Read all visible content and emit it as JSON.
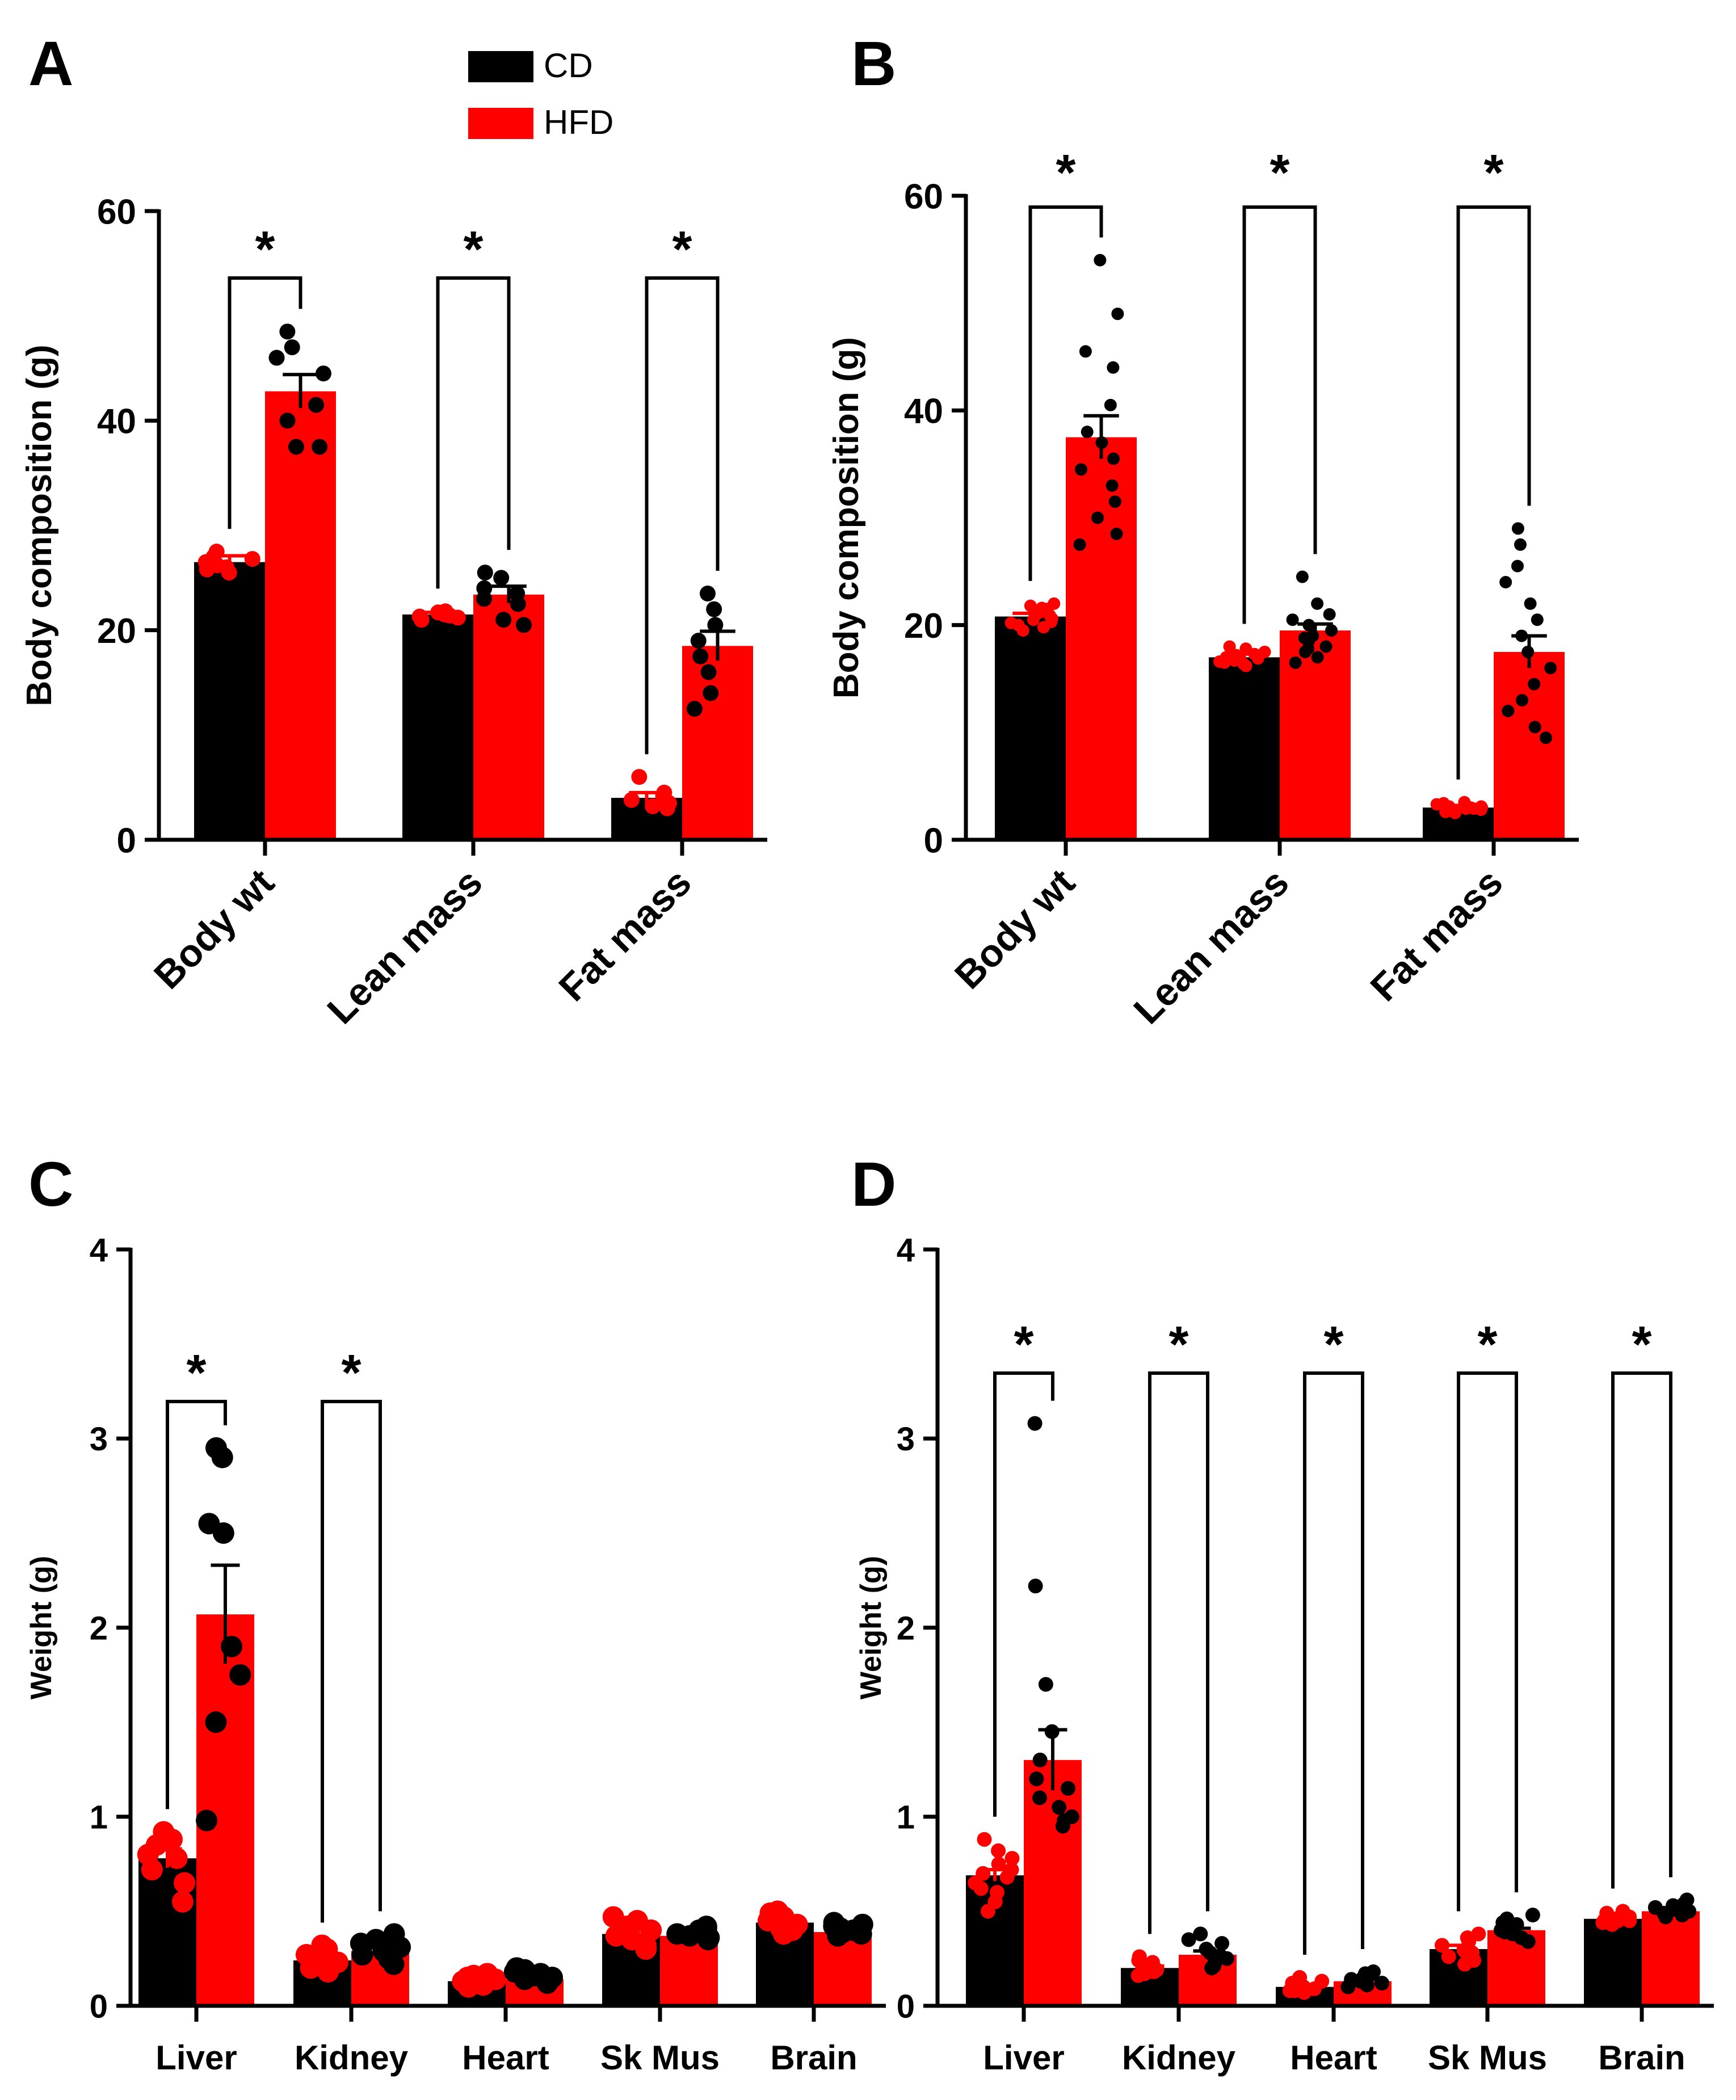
{
  "legend": {
    "position": "top",
    "entries": [
      {
        "label": "CD",
        "color": "#000000"
      },
      {
        "label": "HFD",
        "color": "#ff0000"
      }
    ]
  },
  "colors": {
    "CD": "#000000",
    "HFD": "#ff0000",
    "axis": "#000000"
  },
  "chart_data": [
    {
      "panel": "A",
      "type": "bar",
      "ylabel": "Body composition (g)",
      "ylim": [
        0,
        60
      ],
      "yticks": [
        0,
        20,
        40,
        60
      ],
      "categories": [
        "Body wt",
        "Lean mass",
        "Fat mass"
      ],
      "tick_rotation": -45,
      "grid": false,
      "series": [
        {
          "name": "CD",
          "bar_color": "#000000",
          "dot_color": "#ff0000",
          "values": [
            26.5,
            21.5,
            4.0
          ],
          "sem": [
            0.6,
            0.2,
            0.5
          ],
          "points": [
            [
              26.0,
              25.5,
              27.5,
              26.5,
              27.0,
              25.8,
              26.8,
              26.2
            ],
            [
              21.5,
              21.2,
              21.8,
              21.0,
              21.4,
              21.6,
              21.3,
              21.7
            ],
            [
              3.5,
              4.5,
              6.0,
              3.2,
              4.0,
              3.8,
              4.2,
              3.0
            ]
          ]
        },
        {
          "name": "HFD",
          "bar_color": "#ff0000",
          "dot_color": "#000000",
          "values": [
            42.8,
            23.4,
            18.5
          ],
          "sem": [
            1.6,
            0.8,
            1.4
          ],
          "points": [
            [
              48.5,
              47.0,
              46.0,
              44.5,
              41.5,
              40.0,
              37.5,
              37.5
            ],
            [
              25.5,
              25.0,
              24.0,
              23.5,
              23.0,
              22.5,
              21.0,
              20.5
            ],
            [
              23.5,
              22.0,
              20.5,
              19.0,
              17.5,
              16.0,
              14.0,
              12.5
            ]
          ]
        }
      ],
      "annotations": [
        {
          "category": "Body wt",
          "text": "*"
        },
        {
          "category": "Lean mass",
          "text": "*"
        },
        {
          "category": "Fat mass",
          "text": "*"
        }
      ]
    },
    {
      "panel": "B",
      "type": "bar",
      "ylabel": "Body composition (g)",
      "ylim": [
        0,
        60
      ],
      "yticks": [
        0,
        20,
        40,
        60
      ],
      "categories": [
        "Body wt",
        "Lean mass",
        "Fat mass"
      ],
      "tick_rotation": -45,
      "grid": false,
      "series": [
        {
          "name": "CD",
          "bar_color": "#000000",
          "dot_color": "#ff0000",
          "values": [
            20.8,
            17.0,
            3.0
          ],
          "sem": [
            0.3,
            0.3,
            0.2
          ],
          "points": [
            [
              20.0,
              21.0,
              20.5,
              22.0,
              19.8,
              21.5,
              20.2,
              21.8,
              20.6,
              19.5,
              21.2,
              20.9,
              20.3,
              21.6
            ],
            [
              16.5,
              17.2,
              16.8,
              18.0,
              17.5,
              16.2,
              17.0,
              16.9,
              17.8,
              16.4,
              17.3,
              16.7,
              17.1,
              16.6
            ],
            [
              3.0,
              2.8,
              3.2,
              3.5,
              2.5,
              2.9,
              3.1,
              3.3,
              2.7,
              3.0,
              3.4,
              2.6,
              3.1,
              2.9
            ]
          ]
        },
        {
          "name": "HFD",
          "bar_color": "#ff0000",
          "dot_color": "#000000",
          "values": [
            37.5,
            19.5,
            17.5
          ],
          "sem": [
            2.0,
            0.6,
            1.5
          ],
          "points": [
            [
              54.0,
              49.0,
              45.5,
              44.0,
              40.5,
              38.0,
              37.0,
              35.5,
              34.5,
              33.0,
              31.5,
              30.0,
              28.5,
              27.5
            ],
            [
              24.5,
              22.0,
              21.0,
              20.5,
              20.0,
              19.5,
              19.0,
              18.8,
              18.5,
              18.0,
              17.8,
              17.5,
              17.0,
              16.5
            ],
            [
              29.0,
              27.5,
              25.5,
              24.0,
              22.0,
              20.5,
              19.0,
              17.5,
              16.0,
              14.5,
              13.0,
              12.0,
              10.5,
              9.5
            ]
          ]
        }
      ],
      "annotations": [
        {
          "category": "Body wt",
          "text": "*"
        },
        {
          "category": "Lean mass",
          "text": "*"
        },
        {
          "category": "Fat mass",
          "text": "*"
        }
      ]
    },
    {
      "panel": "C",
      "type": "bar",
      "ylabel": "Weight (g)",
      "ylim": [
        0,
        4
      ],
      "yticks": [
        0,
        1,
        2,
        3,
        4
      ],
      "categories": [
        "Liver",
        "Kidney",
        "Heart",
        "Sk Mus",
        "Brain"
      ],
      "tick_rotation": 0,
      "grid": false,
      "series": [
        {
          "name": "CD",
          "bar_color": "#000000",
          "dot_color": "#ff0000",
          "values": [
            0.78,
            0.24,
            0.13,
            0.38,
            0.44
          ],
          "sem": [
            0.05,
            0.02,
            0.01,
            0.02,
            0.02
          ],
          "points": [
            [
              0.92,
              0.88,
              0.85,
              0.8,
              0.78,
              0.72,
              0.65,
              0.55
            ],
            [
              0.32,
              0.3,
              0.27,
              0.25,
              0.23,
              0.21,
              0.2,
              0.18
            ],
            [
              0.17,
              0.16,
              0.15,
              0.14,
              0.13,
              0.12,
              0.11,
              0.1
            ],
            [
              0.47,
              0.45,
              0.42,
              0.4,
              0.37,
              0.35,
              0.32,
              0.3
            ],
            [
              0.5,
              0.49,
              0.47,
              0.45,
              0.43,
              0.41,
              0.4,
              0.38
            ]
          ]
        },
        {
          "name": "HFD",
          "bar_color": "#ff0000",
          "dot_color": "#000000",
          "values": [
            2.07,
            0.29,
            0.14,
            0.37,
            0.39
          ],
          "sem": [
            0.26,
            0.02,
            0.01,
            0.01,
            0.01
          ],
          "points": [
            [
              2.95,
              2.9,
              2.55,
              2.5,
              1.9,
              1.75,
              1.5,
              0.98
            ],
            [
              0.38,
              0.35,
              0.33,
              0.31,
              0.29,
              0.27,
              0.25,
              0.22
            ],
            [
              0.2,
              0.19,
              0.18,
              0.17,
              0.16,
              0.15,
              0.14,
              0.12
            ],
            [
              0.42,
              0.41,
              0.4,
              0.39,
              0.38,
              0.37,
              0.36,
              0.35
            ],
            [
              0.44,
              0.43,
              0.42,
              0.41,
              0.4,
              0.39,
              0.38,
              0.37
            ]
          ]
        }
      ],
      "annotations": [
        {
          "category": "Liver",
          "text": "*"
        },
        {
          "category": "Kidney",
          "text": "*"
        }
      ]
    },
    {
      "panel": "D",
      "type": "bar",
      "ylabel": "Weight (g)",
      "ylim": [
        0,
        4
      ],
      "yticks": [
        0,
        1,
        2,
        3,
        4
      ],
      "categories": [
        "Liver",
        "Kidney",
        "Heart",
        "Sk Mus",
        "Brain"
      ],
      "tick_rotation": 0,
      "grid": false,
      "series": [
        {
          "name": "CD",
          "bar_color": "#000000",
          "dot_color": "#ff0000",
          "values": [
            0.69,
            0.2,
            0.1,
            0.3,
            0.46
          ],
          "sem": [
            0.03,
            0.01,
            0.01,
            0.02,
            0.01
          ],
          "points": [
            [
              0.88,
              0.82,
              0.78,
              0.75,
              0.72,
              0.7,
              0.68,
              0.65,
              0.62,
              0.6,
              0.55,
              0.5
            ],
            [
              0.26,
              0.24,
              0.23,
              0.22,
              0.21,
              0.2,
              0.19,
              0.18,
              0.17,
              0.16
            ],
            [
              0.15,
              0.13,
              0.12,
              0.11,
              0.1,
              0.09,
              0.08,
              0.08,
              0.07
            ],
            [
              0.38,
              0.36,
              0.34,
              0.32,
              0.3,
              0.29,
              0.28,
              0.26,
              0.24,
              0.22
            ],
            [
              0.5,
              0.49,
              0.48,
              0.47,
              0.46,
              0.45,
              0.45,
              0.44,
              0.43
            ]
          ]
        },
        {
          "name": "HFD",
          "bar_color": "#ff0000",
          "dot_color": "#000000",
          "values": [
            1.3,
            0.27,
            0.13,
            0.4,
            0.5
          ],
          "sem": [
            0.16,
            0.02,
            0.01,
            0.01,
            0.01
          ],
          "points": [
            [
              3.08,
              2.22,
              1.7,
              1.45,
              1.3,
              1.2,
              1.15,
              1.1,
              1.05,
              1.0,
              0.98,
              0.95
            ],
            [
              0.38,
              0.35,
              0.33,
              0.3,
              0.28,
              0.26,
              0.25,
              0.23,
              0.21,
              0.2
            ],
            [
              0.18,
              0.17,
              0.16,
              0.15,
              0.14,
              0.13,
              0.12,
              0.11,
              0.1
            ],
            [
              0.48,
              0.46,
              0.44,
              0.43,
              0.42,
              0.4,
              0.39,
              0.38,
              0.36,
              0.34
            ],
            [
              0.56,
              0.54,
              0.53,
              0.52,
              0.51,
              0.5,
              0.49,
              0.48,
              0.47
            ]
          ]
        }
      ],
      "annotations": [
        {
          "category": "Liver",
          "text": "*"
        },
        {
          "category": "Kidney",
          "text": "*"
        },
        {
          "category": "Heart",
          "text": "*"
        },
        {
          "category": "Sk Mus",
          "text": "*"
        },
        {
          "category": "Brain",
          "text": "*"
        }
      ]
    }
  ]
}
